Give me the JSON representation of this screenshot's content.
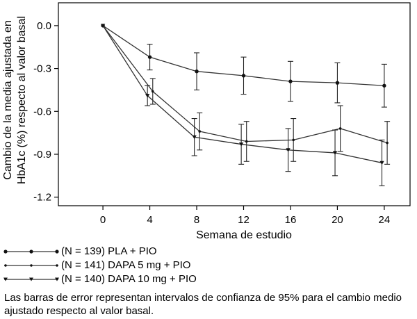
{
  "chart_data": {
    "type": "line",
    "xlabel": "Semana de estudio",
    "ylabel_lines": [
      "Cambio de la media ajustada en",
      "HbA1c (%) respecto al valor basal"
    ],
    "x_ticks": [
      0,
      4,
      8,
      12,
      16,
      20,
      24
    ],
    "y_ticks": [
      0.0,
      -0.3,
      -0.6,
      -0.9,
      -1.2
    ],
    "y_tick_labels": [
      "0.0",
      "-0.3",
      "-0.6",
      "-0.9",
      "-1.2"
    ],
    "xlim": [
      -3.8,
      26.2
    ],
    "ylim": [
      -1.26,
      0.16
    ],
    "x": [
      0,
      4,
      8,
      12,
      16,
      20,
      24
    ],
    "series": [
      {
        "name": "(N = 139) PLA + PIO",
        "marker": "circle",
        "values": [
          0.0,
          -0.22,
          -0.32,
          -0.35,
          -0.39,
          -0.4,
          -0.42
        ],
        "err": [
          0.0,
          0.09,
          0.13,
          0.13,
          0.14,
          0.14,
          0.15
        ],
        "dx": 0.0
      },
      {
        "name": "(N = 141) DAPA 5 mg + PIO",
        "marker": "dot",
        "values": [
          0.0,
          -0.46,
          -0.74,
          -0.81,
          -0.8,
          -0.72,
          -0.82
        ],
        "err": [
          0.0,
          0.09,
          0.13,
          0.14,
          0.15,
          0.16,
          0.15
        ],
        "dx": 0.25
      },
      {
        "name": "(N = 140) DAPA 10 mg + PIO",
        "marker": "triangle",
        "values": [
          0.0,
          -0.49,
          -0.78,
          -0.83,
          -0.87,
          -0.89,
          -0.96
        ],
        "err": [
          0.0,
          0.07,
          0.13,
          0.14,
          0.15,
          0.16,
          0.16
        ],
        "dx": -0.2
      }
    ],
    "legend_position": "bottom-left",
    "grid": false
  },
  "footnote": "Las barras de error representan intervalos de confianza de 95% para el cambio medio ajustado respecto al valor basal."
}
